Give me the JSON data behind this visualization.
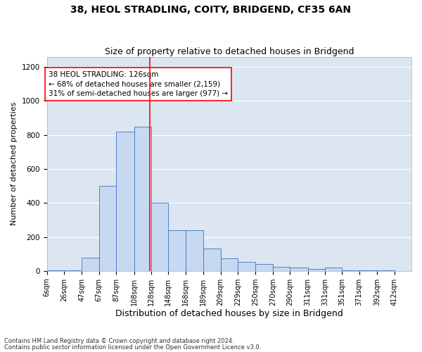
{
  "title1": "38, HEOL STRADLING, COITY, BRIDGEND, CF35 6AN",
  "title2": "Size of property relative to detached houses in Bridgend",
  "xlabel": "Distribution of detached houses by size in Bridgend",
  "ylabel": "Number of detached properties",
  "footnote1": "Contains HM Land Registry data © Crown copyright and database right 2024.",
  "footnote2": "Contains public sector information licensed under the Open Government Licence v3.0.",
  "bar_left_edges": [
    6,
    26,
    47,
    67,
    87,
    108,
    128,
    148,
    168,
    189,
    209,
    229,
    250,
    270,
    290,
    311,
    331,
    351,
    371,
    392
  ],
  "bar_widths": [
    20,
    21,
    20,
    20,
    21,
    20,
    20,
    20,
    21,
    20,
    20,
    21,
    20,
    20,
    21,
    20,
    20,
    20,
    21,
    20
  ],
  "bar_heights": [
    5,
    5,
    80,
    500,
    820,
    850,
    400,
    240,
    240,
    130,
    75,
    55,
    40,
    25,
    20,
    10,
    20,
    5,
    5,
    2
  ],
  "tick_labels": [
    "6sqm",
    "26sqm",
    "47sqm",
    "67sqm",
    "87sqm",
    "108sqm",
    "128sqm",
    "148sqm",
    "168sqm",
    "189sqm",
    "209sqm",
    "229sqm",
    "250sqm",
    "270sqm",
    "290sqm",
    "311sqm",
    "331sqm",
    "351sqm",
    "371sqm",
    "392sqm",
    "412sqm"
  ],
  "tick_positions": [
    6,
    26,
    47,
    67,
    87,
    108,
    128,
    148,
    168,
    189,
    209,
    229,
    250,
    270,
    290,
    311,
    331,
    351,
    371,
    392,
    412
  ],
  "bar_color": "#c6d9f0",
  "bar_edge_color": "#4472c4",
  "bg_color": "#ffffff",
  "plot_bg_color": "#dce6f1",
  "red_line_x": 126,
  "annotation_box_text": "38 HEOL STRADLING: 126sqm\n← 68% of detached houses are smaller (2,159)\n31% of semi-detached houses are larger (977) →",
  "ylim": [
    0,
    1260
  ],
  "yticks": [
    0,
    200,
    400,
    600,
    800,
    1000,
    1200
  ],
  "grid_color": "#ffffff",
  "title1_fontsize": 10,
  "title2_fontsize": 9,
  "xlabel_fontsize": 9,
  "ylabel_fontsize": 8,
  "tick_fontsize": 7,
  "annot_fontsize": 7.5
}
